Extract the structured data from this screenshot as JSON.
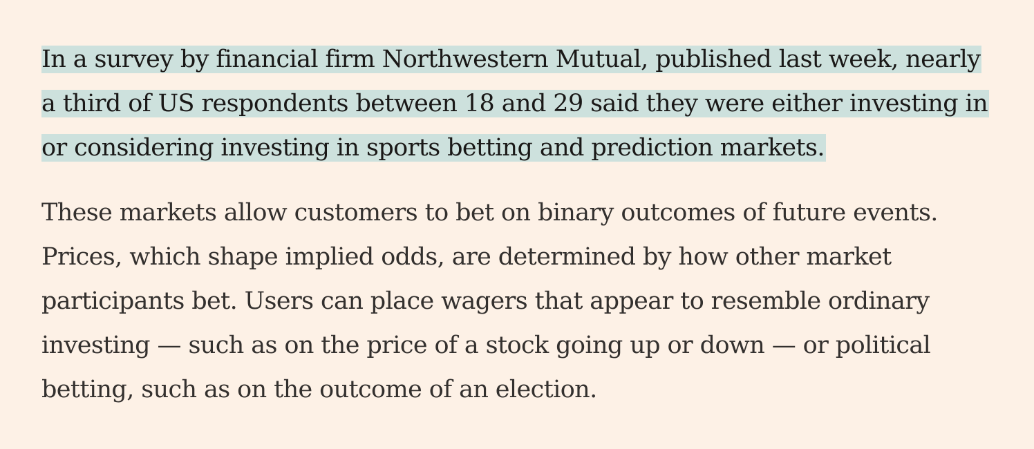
{
  "article": {
    "highlighted_paragraph": [
      "In a survey by financial firm Northwestern Mutual, published last week, nearly",
      "a third of US respondents between 18 and 29 said they were either investing in",
      "or considering investing in sports betting and prediction markets."
    ],
    "body_paragraph": [
      "These markets allow customers to bet on binary outcomes of future events.",
      "Prices, which shape implied odds, are determined by how other market",
      "participants bet. Users can place wagers that appear to resemble ordinary",
      "investing — such as on the price of a stock going up or down — or political",
      "betting, such as on the outcome of an election."
    ],
    "highlight_color": "#cde1dd",
    "background_color": "#fdf1e6",
    "text_color": "#33302e"
  }
}
